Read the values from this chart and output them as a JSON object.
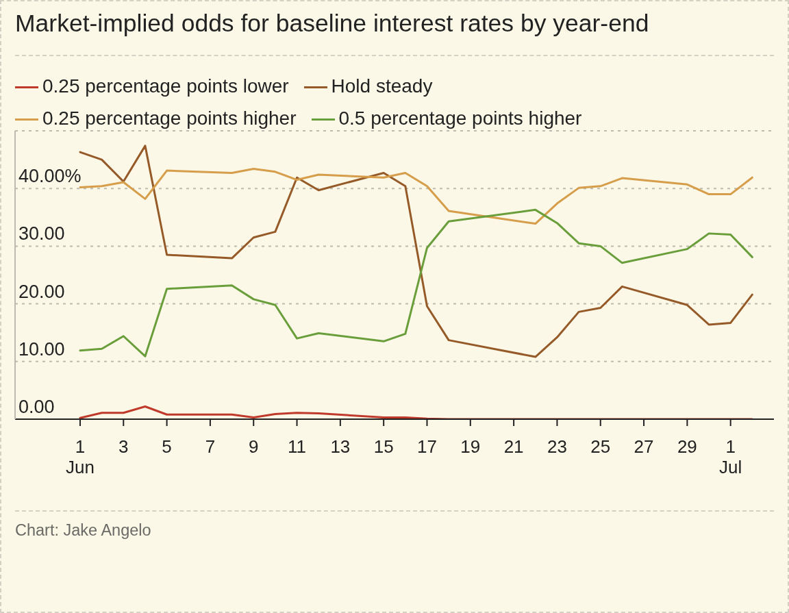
{
  "chart_data": {
    "type": "line",
    "title": "Market-implied odds for baseline interest rates by year-end",
    "annotations": [
      "Chart: Jake Angelo"
    ],
    "x": [
      "--06-01",
      "--06-02",
      "--06-03",
      "--06-04",
      "--06-05",
      "--06-08",
      "--06-09",
      "--06-10",
      "--06-11",
      "--06-12",
      "--06-15",
      "--06-16",
      "--06-17",
      "--06-18",
      "--06-22",
      "--06-23",
      "--06-24",
      "--06-25",
      "--06-26",
      "--06-29",
      "--06-30",
      "--07-01",
      "--07-02"
    ],
    "series": [
      {
        "name": "0.25 percentage points lower",
        "color": "#c03a2b",
        "values": [
          0.2,
          1.1,
          1.1,
          2.2,
          0.8,
          0.8,
          0.3,
          0.9,
          1.1,
          1.0,
          0.3,
          0.3,
          0.1,
          0,
          0,
          0,
          0,
          0,
          0,
          0,
          0,
          0,
          0
        ]
      },
      {
        "name": "Hold steady",
        "color": "#955a28",
        "values": [
          46.3,
          45.0,
          41.2,
          47.4,
          28.5,
          27.9,
          31.5,
          32.5,
          41.9,
          39.7,
          42.7,
          40.4,
          19.6,
          13.7,
          10.8,
          14.2,
          18.6,
          19.3,
          23.0,
          19.8,
          16.4,
          16.7,
          21.6
        ]
      },
      {
        "name": "0.25 percentage points higher",
        "color": "#d69d4a",
        "values": [
          40.2,
          40.4,
          41.1,
          38.2,
          43.1,
          42.7,
          43.4,
          42.9,
          41.5,
          42.4,
          41.9,
          42.7,
          40.4,
          36.1,
          33.9,
          37.4,
          40.1,
          40.4,
          41.8,
          40.7,
          39.0,
          39.0,
          41.9
        ]
      },
      {
        "name": "0.5 percentage points higher",
        "color": "#6a9e3b",
        "values": [
          11.9,
          12.2,
          14.4,
          10.9,
          22.6,
          23.2,
          20.8,
          19.8,
          14.0,
          14.9,
          13.5,
          14.8,
          29.7,
          34.3,
          36.3,
          34.0,
          30.5,
          30.0,
          27.1,
          29.5,
          32.2,
          32.0,
          28.1
        ]
      }
    ],
    "xlim": [
      "--05-29",
      "--07-03"
    ],
    "xticks": [
      {
        "value": "--06-01",
        "label": "1\nJun"
      },
      {
        "value": "--06-03",
        "label": "3"
      },
      {
        "value": "--06-05",
        "label": "5"
      },
      {
        "value": "--06-07",
        "label": "7"
      },
      {
        "value": "--06-09",
        "label": "9"
      },
      {
        "value": "--06-11",
        "label": "11"
      },
      {
        "value": "--06-13",
        "label": "13"
      },
      {
        "value": "--06-15",
        "label": "15"
      },
      {
        "value": "--06-17",
        "label": "17"
      },
      {
        "value": "--06-19",
        "label": "19"
      },
      {
        "value": "--06-21",
        "label": "21"
      },
      {
        "value": "--06-23",
        "label": "23"
      },
      {
        "value": "--06-25",
        "label": "25"
      },
      {
        "value": "--06-27",
        "label": "27"
      },
      {
        "value": "--06-29",
        "label": "29"
      },
      {
        "value": "--07-01",
        "label": "1\nJul"
      }
    ],
    "ylim": [
      0,
      50
    ],
    "yticks": [
      {
        "value": 0,
        "label": "0.00"
      },
      {
        "value": 10,
        "label": "10.00"
      },
      {
        "value": 20,
        "label": "20.00"
      },
      {
        "value": 30,
        "label": "30.00"
      },
      {
        "value": 40,
        "label": "40.00%"
      }
    ],
    "grid": "y",
    "legend": "top left",
    "line_style": "solid"
  }
}
